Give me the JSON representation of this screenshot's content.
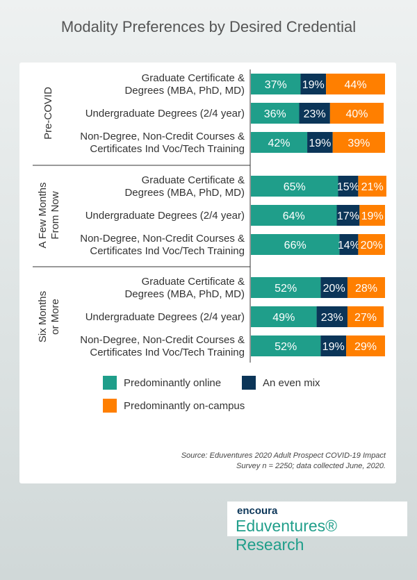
{
  "chart_data": {
    "type": "bar",
    "orientation": "horizontal-stacked-100",
    "title": "Modality Preferences by Desired Credential",
    "groups": [
      "Pre-COVID",
      "A Few Months From Now",
      "Six Months or More"
    ],
    "categories": [
      "Graduate Certificate & Degrees (MBA, PhD, MD)",
      "Undergraduate Degrees (2/4 year)",
      "Non-Degree, Non-Credit Courses & Certificates Ind Voc/Tech Training"
    ],
    "series": [
      {
        "name": "Predominantly online",
        "color": "#1f9e8a",
        "values": [
          [
            37,
            36,
            42
          ],
          [
            65,
            64,
            66
          ],
          [
            52,
            49,
            52
          ]
        ]
      },
      {
        "name": "An even mix",
        "color": "#0b3558",
        "values": [
          [
            19,
            23,
            19
          ],
          [
            15,
            17,
            14
          ],
          [
            20,
            23,
            19
          ]
        ]
      },
      {
        "name": "Predominantly on-campus",
        "color": "#ff7f00",
        "values": [
          [
            44,
            40,
            39
          ],
          [
            21,
            19,
            20
          ],
          [
            28,
            27,
            29
          ]
        ]
      }
    ],
    "legend": "bottom",
    "grid": false
  },
  "source": "Source: Eduventures 2020 Adult Prospect COVID-19 Impact Survey n = 2250; data collected June, 2020.",
  "logo": {
    "brand": "encoura",
    "name": "Eduventures® Research"
  }
}
